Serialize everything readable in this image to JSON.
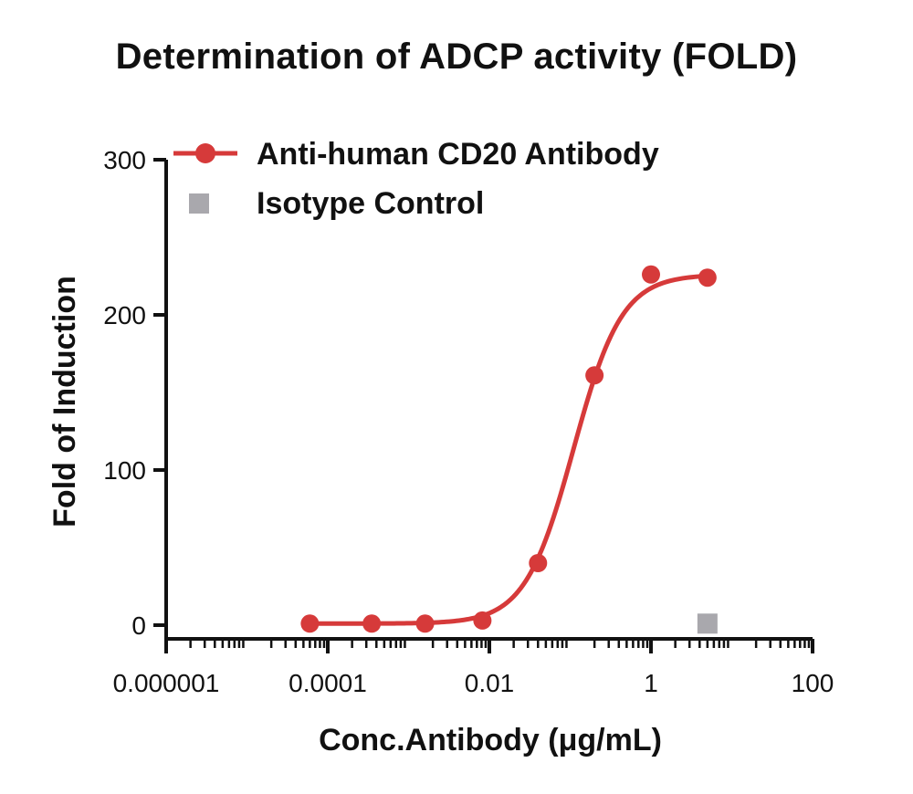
{
  "chart_data": {
    "type": "scatter",
    "title": "Determination of ADCP activity (FOLD)",
    "xlabel": "Conc.Antibody (μg/mL)",
    "ylabel": "Fold of Induction",
    "xscale": "log",
    "xlim": [
      1e-06,
      100
    ],
    "ylim": [
      0,
      300
    ],
    "xticks": [
      1e-06,
      0.0001,
      0.01,
      1,
      100
    ],
    "xtick_labels": [
      "0.000001",
      "0.0001",
      "0.01",
      "1",
      "100"
    ],
    "yticks": [
      0,
      100,
      200,
      300
    ],
    "ytick_labels": [
      "0",
      "100",
      "200",
      "300"
    ],
    "grid": false,
    "legend_position": "top-left",
    "series": [
      {
        "name": "Anti-human CD20 Antibody",
        "color": "#d63a3a",
        "marker": "circle",
        "fit": "sigmoidal",
        "x": [
          6e-05,
          0.00035,
          0.0016,
          0.0082,
          0.04,
          0.2,
          1.0,
          5.0
        ],
        "y": [
          1,
          1,
          1,
          3,
          40,
          161,
          226,
          224
        ]
      },
      {
        "name": "Isotype Control",
        "color": "#a9a8ad",
        "marker": "square",
        "x": [
          5.0
        ],
        "y": [
          1
        ]
      }
    ]
  }
}
